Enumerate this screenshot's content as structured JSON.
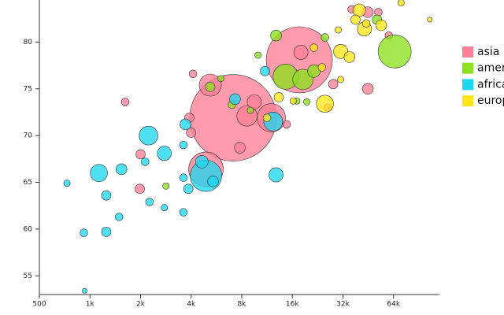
{
  "chart_data": {
    "type": "bubble",
    "xlim": [
      500,
      120000
    ],
    "ylim": [
      53,
      84.5
    ],
    "log_x": true,
    "xticks": [
      {
        "value": 500,
        "label": "500"
      },
      {
        "value": 1000,
        "label": "1k"
      },
      {
        "value": 2000,
        "label": "2k"
      },
      {
        "value": 4000,
        "label": "4k"
      },
      {
        "value": 8000,
        "label": "8k"
      },
      {
        "value": 16000,
        "label": "16k"
      },
      {
        "value": 32000,
        "label": "32k"
      },
      {
        "value": 64000,
        "label": "64k"
      }
    ],
    "yticks": [
      55,
      60,
      65,
      70,
      75,
      80
    ],
    "series": [
      {
        "name": "asia",
        "color": "#ff7f96",
        "x": [
          7100,
          17600,
          4900,
          12000,
          5200,
          8600,
          18000,
          1620,
          4100,
          4000,
          7800,
          2000,
          1980,
          28000,
          45000,
          60000,
          3900,
          9500,
          26000,
          45000,
          36000,
          52000,
          14800
        ],
        "values": [
          71.9,
          78.1,
          66.4,
          71.9,
          75.4,
          72.1,
          78.9,
          73.6,
          76.6,
          70.3,
          68.7,
          68.0,
          64.3,
          75.5,
          75.0,
          80.7,
          71.9,
          73.6,
          73.0,
          83.2,
          83.5,
          83.2,
          71.2
        ],
        "sizes": [
          1259,
          734,
          201,
          135,
          82,
          70,
          34,
          10,
          10,
          15,
          20,
          15,
          15,
          15,
          20,
          10,
          15,
          34,
          10,
          20,
          10,
          10,
          10
        ]
      },
      {
        "name": "americas",
        "color": "#8ce01e",
        "x": [
          65000,
          14600,
          18500,
          12800,
          25000,
          21500,
          7000,
          5200,
          17000,
          10000,
          2830,
          19500,
          51000,
          9000,
          6000
        ],
        "values": [
          79.0,
          76.3,
          76.0,
          80.7,
          80.5,
          76.9,
          73.3,
          75.2,
          73.7,
          78.6,
          64.6,
          73.6,
          82.4,
          72.7,
          76.1
        ],
        "sizes": [
          184,
          107,
          70,
          20,
          10,
          27,
          10,
          15,
          7,
          7,
          7,
          7,
          15,
          7,
          7
        ]
      },
      {
        "name": "africa",
        "color": "#1ed7f0",
        "x": [
          4900,
          2230,
          1130,
          2770,
          1540,
          12300,
          12800,
          7300,
          3700,
          1250,
          920,
          1250,
          1490,
          730,
          3600,
          2770,
          2260,
          3850,
          5400,
          4630,
          3600,
          930,
          11000,
          2130,
          3600
        ],
        "values": [
          65.7,
          70.0,
          66.0,
          68.1,
          66.4,
          71.5,
          65.8,
          73.9,
          71.2,
          63.6,
          59.6,
          59.7,
          61.3,
          64.9,
          61.8,
          62.3,
          62.9,
          64.3,
          65.1,
          67.2,
          65.5,
          53.4,
          76.9,
          67.2,
          69.0
        ],
        "sizes": [
          166,
          60,
          50,
          34,
          20,
          60,
          34,
          20,
          20,
          15,
          10,
          15,
          10,
          7,
          10,
          7,
          10,
          15,
          20,
          27,
          10,
          4,
          15,
          10,
          10
        ]
      },
      {
        "name": "europe",
        "color": "#ffe619",
        "x": [
          25000,
          31000,
          35000,
          43000,
          40000,
          54000,
          13300,
          11300,
          31000,
          38000,
          30000,
          71000,
          105000,
          21500,
          24000,
          16200,
          44000
        ],
        "values": [
          73.4,
          79.0,
          78.4,
          81.4,
          83.4,
          81.8,
          74.1,
          71.9,
          76.0,
          82.4,
          81.3,
          84.2,
          82.4,
          79.4,
          77.3,
          73.7,
          82.0
        ],
        "sizes": [
          50,
          34,
          20,
          34,
          27,
          20,
          15,
          10,
          7,
          15,
          7,
          7,
          4,
          10,
          10,
          7,
          10
        ]
      }
    ]
  }
}
